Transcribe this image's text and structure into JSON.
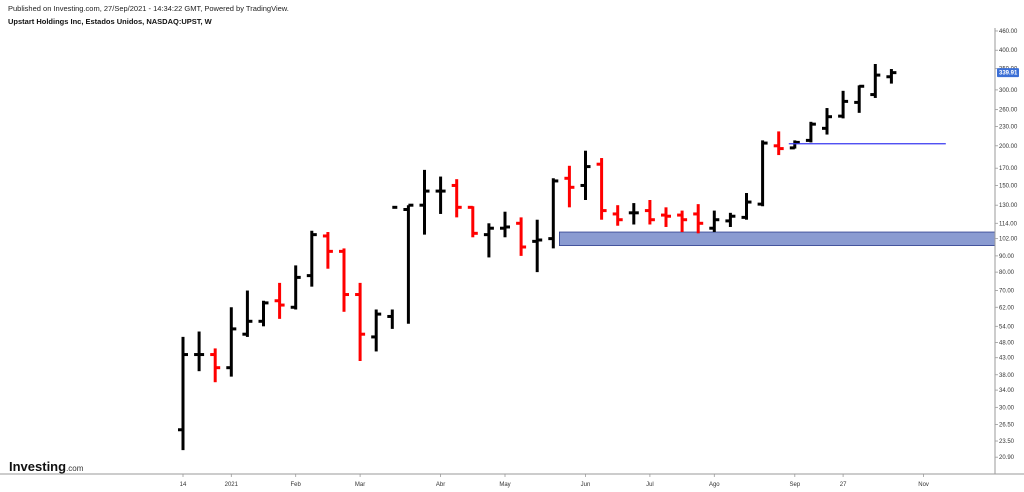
{
  "header": {
    "published_line": "Published on Investing.com, 27/Sep/2021 - 14:34:22 GMT, Powered by TradingView.",
    "symbol_line": "Upstart Holdings Inc, Estados Unidos, NASDAQ:UPST, W"
  },
  "logo": {
    "name": "Investing",
    "suffix": ".com"
  },
  "colors": {
    "up": "#000000",
    "down": "#ff0000",
    "zone_fill": "#8a9bd1",
    "zone_stroke": "#2e3e8f",
    "level_line": "#3a3af0",
    "price_badge": "#3b6fd6",
    "axis_line": "#9a9a9a"
  },
  "chart_data": {
    "type": "ohlc",
    "title": "Upstart Holdings Inc, Estados Unidos, NASDAQ:UPST, W",
    "y_scale": "log",
    "ylim": [
      18.5,
      470
    ],
    "y_ticks": [
      "460.00",
      "400.00",
      "350.00",
      "300.00",
      "260.00",
      "230.00",
      "200.00",
      "170.00",
      "150.00",
      "130.00",
      "114.00",
      "102.00",
      "90.00",
      "80.00",
      "70.00",
      "62.00",
      "54.00",
      "48.00",
      "43.00",
      "38.00",
      "34.00",
      "30.00",
      "26.50",
      "23.50",
      "20.90"
    ],
    "x_ticks": [
      {
        "label": "14",
        "week": 0
      },
      {
        "label": "2021",
        "week": 3
      },
      {
        "label": "Feb",
        "week": 7
      },
      {
        "label": "Mar",
        "week": 11
      },
      {
        "label": "Abr",
        "week": 16
      },
      {
        "label": "May",
        "week": 20
      },
      {
        "label": "Jun",
        "week": 25
      },
      {
        "label": "Jul",
        "week": 29
      },
      {
        "label": "Ago",
        "week": 33
      },
      {
        "label": "Sep",
        "week": 38
      },
      {
        "label": "27",
        "week": 41
      },
      {
        "label": "Nov",
        "week": 46
      }
    ],
    "bars": [
      {
        "o": 25.5,
        "h": 50,
        "l": 22,
        "c": 44
      },
      {
        "o": 44,
        "h": 52,
        "l": 39,
        "c": 44
      },
      {
        "o": 44,
        "h": 46,
        "l": 36,
        "c": 40
      },
      {
        "o": 40,
        "h": 62,
        "l": 37.5,
        "c": 53
      },
      {
        "o": 51,
        "h": 70,
        "l": 50,
        "c": 56
      },
      {
        "o": 56,
        "h": 65,
        "l": 54,
        "c": 64
      },
      {
        "o": 65,
        "h": 74,
        "l": 57,
        "c": 63
      },
      {
        "o": 62,
        "h": 84,
        "l": 61,
        "c": 77
      },
      {
        "o": 78,
        "h": 108,
        "l": 72,
        "c": 105
      },
      {
        "o": 104,
        "h": 107,
        "l": 82,
        "c": 93
      },
      {
        "o": 93,
        "h": 95,
        "l": 60,
        "c": 68
      },
      {
        "o": 68,
        "h": 74,
        "l": 42,
        "c": 51
      },
      {
        "o": 50,
        "h": 61,
        "l": 45,
        "c": 59
      },
      {
        "o": 58,
        "h": 61,
        "l": 53,
        "c": 128
      },
      {
        "o": 126,
        "h": 130,
        "l": 55,
        "c": 130
      },
      {
        "o": 130,
        "h": 168,
        "l": 105,
        "c": 144
      },
      {
        "o": 144,
        "h": 160,
        "l": 122,
        "c": 144
      },
      {
        "o": 150,
        "h": 157,
        "l": 119,
        "c": 128
      },
      {
        "o": 128,
        "h": 129,
        "l": 103,
        "c": 106
      },
      {
        "o": 105,
        "h": 114,
        "l": 89,
        "c": 110
      },
      {
        "o": 110,
        "h": 124,
        "l": 103,
        "c": 111
      },
      {
        "o": 114,
        "h": 119,
        "l": 90,
        "c": 96
      },
      {
        "o": 100,
        "h": 117,
        "l": 80,
        "c": 101
      },
      {
        "o": 102,
        "h": 158,
        "l": 95,
        "c": 155
      },
      {
        "o": 158,
        "h": 173,
        "l": 128,
        "c": 148
      },
      {
        "o": 150,
        "h": 193,
        "l": 135,
        "c": 172
      },
      {
        "o": 175,
        "h": 183,
        "l": 117,
        "c": 125
      },
      {
        "o": 122,
        "h": 130,
        "l": 112,
        "c": 117
      },
      {
        "o": 123,
        "h": 132,
        "l": 113,
        "c": 123
      },
      {
        "o": 125,
        "h": 135,
        "l": 113,
        "c": 117
      },
      {
        "o": 121,
        "h": 128,
        "l": 111,
        "c": 120
      },
      {
        "o": 121,
        "h": 125,
        "l": 107,
        "c": 117
      },
      {
        "o": 122,
        "h": 131,
        "l": 106,
        "c": 114
      },
      {
        "o": 110,
        "h": 125,
        "l": 107,
        "c": 117
      },
      {
        "o": 116,
        "h": 123,
        "l": 111,
        "c": 120
      },
      {
        "o": 119,
        "h": 142,
        "l": 117,
        "c": 133
      },
      {
        "o": 131,
        "h": 208,
        "l": 129,
        "c": 204
      },
      {
        "o": 200,
        "h": 222,
        "l": 187,
        "c": 196
      },
      {
        "o": 197,
        "h": 208,
        "l": 196,
        "c": 205
      },
      {
        "o": 208,
        "h": 238,
        "l": 205,
        "c": 234
      },
      {
        "o": 227,
        "h": 263,
        "l": 217,
        "c": 247
      },
      {
        "o": 248,
        "h": 298,
        "l": 244,
        "c": 276
      },
      {
        "o": 274,
        "h": 310,
        "l": 254,
        "c": 308
      },
      {
        "o": 290,
        "h": 362,
        "l": 283,
        "c": 334
      },
      {
        "o": 330,
        "h": 349,
        "l": 314,
        "c": 340
      }
    ],
    "last_price": "339.91",
    "support_zone": {
      "low": 97,
      "high": 107,
      "from_week": 24
    },
    "resistance_line": {
      "value": 203,
      "from_week": 38,
      "to_week": 48
    }
  }
}
